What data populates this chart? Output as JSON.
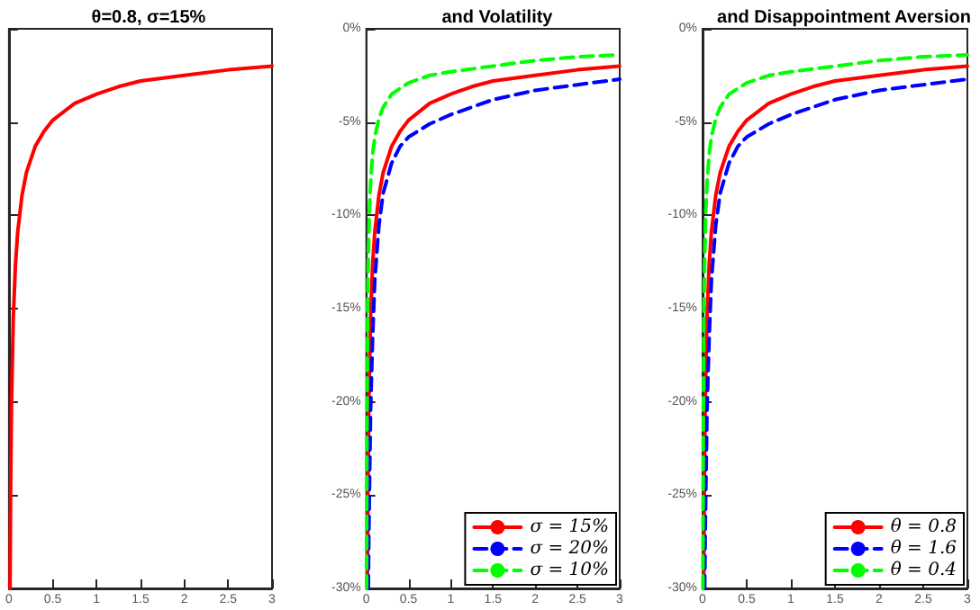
{
  "chart_data": [
    {
      "type": "line",
      "title": "θ=0.8, σ=15%",
      "xlim": [
        0,
        3
      ],
      "xticks": [
        0,
        0.5,
        1,
        1.5,
        2,
        2.5,
        3
      ],
      "ylim": [
        -30,
        0
      ],
      "yticks": [
        {
          "value": -30,
          "label": null
        },
        {
          "value": -25,
          "label": null
        },
        {
          "value": -20,
          "label": null
        },
        {
          "value": -15,
          "label": null
        },
        {
          "value": -10,
          "label": null
        },
        {
          "value": -5,
          "label": null
        },
        {
          "value": 0,
          "label": null
        }
      ],
      "tick_labels": "x",
      "series": [
        {
          "color": "#ff0000",
          "line_style": "solid",
          "x": [
            0.013,
            0.02,
            0.03,
            0.05,
            0.075,
            0.1,
            0.15,
            0.2,
            0.3,
            0.4,
            0.5,
            0.75,
            1,
            1.25,
            1.5,
            2,
            2.5,
            3
          ],
          "values": [
            -30,
            -24.5,
            -20,
            -15.5,
            -12.6,
            -10.9,
            -8.9,
            -7.7,
            -6.3,
            -5.5,
            -4.9,
            -4,
            -3.5,
            -3.1,
            -2.8,
            -2.5,
            -2.2,
            -2.0
          ]
        }
      ]
    },
    {
      "type": "line",
      "title": "and Volatility",
      "xlim": [
        0,
        3
      ],
      "xticks": [
        0,
        0.5,
        1,
        1.5,
        2,
        2.5,
        3
      ],
      "ylim": [
        -30,
        0
      ],
      "yticks": [
        {
          "value": -30,
          "label": "-30%"
        },
        {
          "value": -25,
          "label": "-25%"
        },
        {
          "value": -20,
          "label": "-20%"
        },
        {
          "value": -15,
          "label": "-15%"
        },
        {
          "value": -10,
          "label": "-10%"
        },
        {
          "value": -5,
          "label": "-5%"
        },
        {
          "value": 0,
          "label": "0%"
        }
      ],
      "legend": "bottom right",
      "series": [
        {
          "name": "σ = 15%",
          "color": "#ff0000",
          "line_style": "solid",
          "x": [
            0.013,
            0.02,
            0.03,
            0.05,
            0.075,
            0.1,
            0.15,
            0.2,
            0.3,
            0.4,
            0.5,
            0.75,
            1,
            1.25,
            1.5,
            2,
            2.5,
            3
          ],
          "values": [
            -30,
            -24.5,
            -20,
            -15.5,
            -12.6,
            -10.9,
            -8.9,
            -7.7,
            -6.3,
            -5.5,
            -4.9,
            -4,
            -3.5,
            -3.1,
            -2.8,
            -2.5,
            -2.2,
            -2.0
          ]
        },
        {
          "name": "σ = 20%",
          "color": "#0000ff",
          "line_style": "dashed",
          "x": [
            0.024,
            0.03,
            0.05,
            0.075,
            0.1,
            0.15,
            0.2,
            0.3,
            0.4,
            0.5,
            0.75,
            1,
            1.5,
            2,
            2.5,
            3
          ],
          "values": [
            -30,
            -27,
            -20.5,
            -16.5,
            -13.5,
            -10.5,
            -8.8,
            -7.2,
            -6.3,
            -5.8,
            -5.1,
            -4.6,
            -3.8,
            -3.3,
            -3.0,
            -2.7
          ]
        },
        {
          "name": "σ = 10%",
          "color": "#00ff00",
          "line_style": "dashed",
          "x": [
            0.004,
            0.008,
            0.015,
            0.025,
            0.035,
            0.05,
            0.075,
            0.1,
            0.15,
            0.2,
            0.3,
            0.5,
            0.75,
            1,
            1.5,
            2,
            2.5,
            3
          ],
          "values": [
            -30,
            -22,
            -15,
            -12,
            -10,
            -8.3,
            -6.7,
            -5.8,
            -4.8,
            -4.2,
            -3.5,
            -2.9,
            -2.5,
            -2.3,
            -2.0,
            -1.7,
            -1.5,
            -1.4
          ]
        }
      ]
    },
    {
      "type": "line",
      "title": "and Disappointment Aversion",
      "xlim": [
        0,
        3
      ],
      "xticks": [
        0,
        0.5,
        1,
        1.5,
        2,
        2.5,
        3
      ],
      "ylim": [
        -30,
        0
      ],
      "yticks": [
        {
          "value": -30,
          "label": "-30%"
        },
        {
          "value": -25,
          "label": "-25%"
        },
        {
          "value": -20,
          "label": "-20%"
        },
        {
          "value": -15,
          "label": "-15%"
        },
        {
          "value": -10,
          "label": "-10%"
        },
        {
          "value": -5,
          "label": "-5%"
        },
        {
          "value": 0,
          "label": "0%"
        }
      ],
      "legend": "bottom right",
      "series": [
        {
          "name": "θ = 0.8",
          "color": "#ff0000",
          "line_style": "solid",
          "x": [
            0.013,
            0.02,
            0.03,
            0.05,
            0.075,
            0.1,
            0.15,
            0.2,
            0.3,
            0.4,
            0.5,
            0.75,
            1,
            1.25,
            1.5,
            2,
            2.5,
            3
          ],
          "values": [
            -30,
            -24.5,
            -20,
            -15.5,
            -12.6,
            -10.9,
            -8.9,
            -7.7,
            -6.3,
            -5.5,
            -4.9,
            -4,
            -3.5,
            -3.1,
            -2.8,
            -2.5,
            -2.2,
            -2.0
          ]
        },
        {
          "name": "θ = 1.6",
          "color": "#0000ff",
          "line_style": "dashed",
          "x": [
            0.024,
            0.03,
            0.05,
            0.075,
            0.1,
            0.15,
            0.2,
            0.3,
            0.4,
            0.5,
            0.75,
            1,
            1.5,
            2,
            2.5,
            3
          ],
          "values": [
            -30,
            -27,
            -20.5,
            -16.5,
            -13.5,
            -10.5,
            -8.8,
            -7.2,
            -6.3,
            -5.8,
            -5.1,
            -4.6,
            -3.8,
            -3.3,
            -3.0,
            -2.7
          ]
        },
        {
          "name": "θ = 0.4",
          "color": "#00ff00",
          "line_style": "dashed",
          "x": [
            0.004,
            0.008,
            0.015,
            0.025,
            0.035,
            0.05,
            0.075,
            0.1,
            0.15,
            0.2,
            0.3,
            0.5,
            0.75,
            1,
            1.5,
            2,
            2.5,
            3
          ],
          "values": [
            -30,
            -22,
            -15,
            -12,
            -10,
            -8.3,
            -6.7,
            -5.8,
            -4.8,
            -4.2,
            -3.5,
            -2.9,
            -2.5,
            -2.3,
            -2.0,
            -1.7,
            -1.5,
            -1.4
          ]
        }
      ]
    }
  ]
}
